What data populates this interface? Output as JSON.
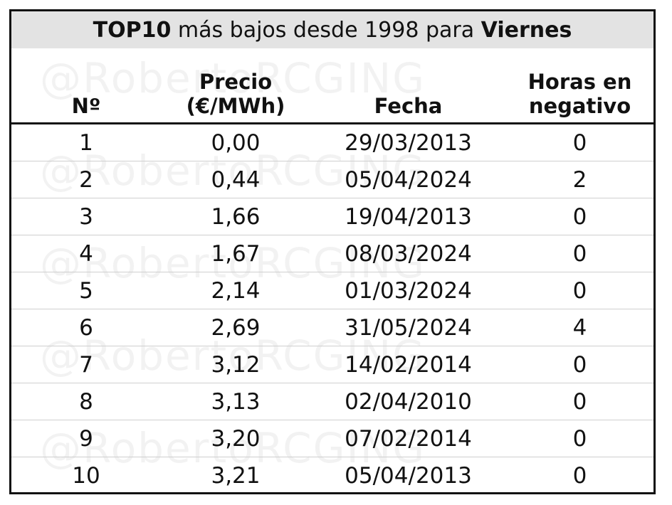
{
  "watermark": "@RobertoRCGING",
  "table": {
    "title": [
      "TOP10",
      "más bajos desde 1998 para",
      "Viernes"
    ],
    "headers": [
      "Nº",
      "Precio\n(€/MWh)",
      "Fecha",
      "Horas en\nnegativo"
    ],
    "rows": [
      [
        "1",
        "0,00",
        "29/03/2013",
        "0"
      ],
      [
        "2",
        "0,44",
        "05/04/2024",
        "2"
      ],
      [
        "3",
        "1,66",
        "19/04/2013",
        "0"
      ],
      [
        "4",
        "1,67",
        "08/03/2024",
        "0"
      ],
      [
        "5",
        "2,14",
        "01/03/2024",
        "0"
      ],
      [
        "6",
        "2,69",
        "31/05/2024",
        "4"
      ],
      [
        "7",
        "3,12",
        "14/02/2014",
        "0"
      ],
      [
        "8",
        "3,13",
        "02/04/2010",
        "0"
      ],
      [
        "9",
        "3,20",
        "07/02/2014",
        "0"
      ],
      [
        "10",
        "3,21",
        "05/04/2013",
        "0"
      ]
    ]
  }
}
